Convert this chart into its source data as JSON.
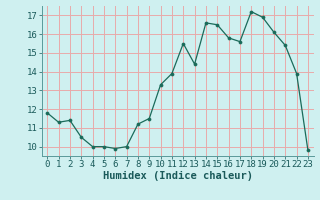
{
  "x": [
    0,
    1,
    2,
    3,
    4,
    5,
    6,
    7,
    8,
    9,
    10,
    11,
    12,
    13,
    14,
    15,
    16,
    17,
    18,
    19,
    20,
    21,
    22,
    23
  ],
  "y": [
    11.8,
    11.3,
    11.4,
    10.5,
    10.0,
    10.0,
    9.9,
    10.0,
    11.2,
    11.5,
    13.3,
    13.9,
    15.5,
    14.4,
    16.6,
    16.5,
    15.8,
    15.6,
    17.2,
    16.9,
    16.1,
    15.4,
    13.9,
    9.8
  ],
  "line_color": "#1a6b5a",
  "marker_color": "#1a6b5a",
  "bg_color": "#cff0f0",
  "grid_color": "#e8aaaa",
  "xlabel": "Humidex (Indice chaleur)",
  "ylim": [
    9.5,
    17.5
  ],
  "xlim": [
    -0.5,
    23.5
  ],
  "yticks": [
    10,
    11,
    12,
    13,
    14,
    15,
    16,
    17
  ],
  "xticks": [
    0,
    1,
    2,
    3,
    4,
    5,
    6,
    7,
    8,
    9,
    10,
    11,
    12,
    13,
    14,
    15,
    16,
    17,
    18,
    19,
    20,
    21,
    22,
    23
  ],
  "tick_fontsize": 6.5,
  "label_fontsize": 7.5,
  "tick_color": "#1a5a5a",
  "label_color": "#1a5a5a"
}
